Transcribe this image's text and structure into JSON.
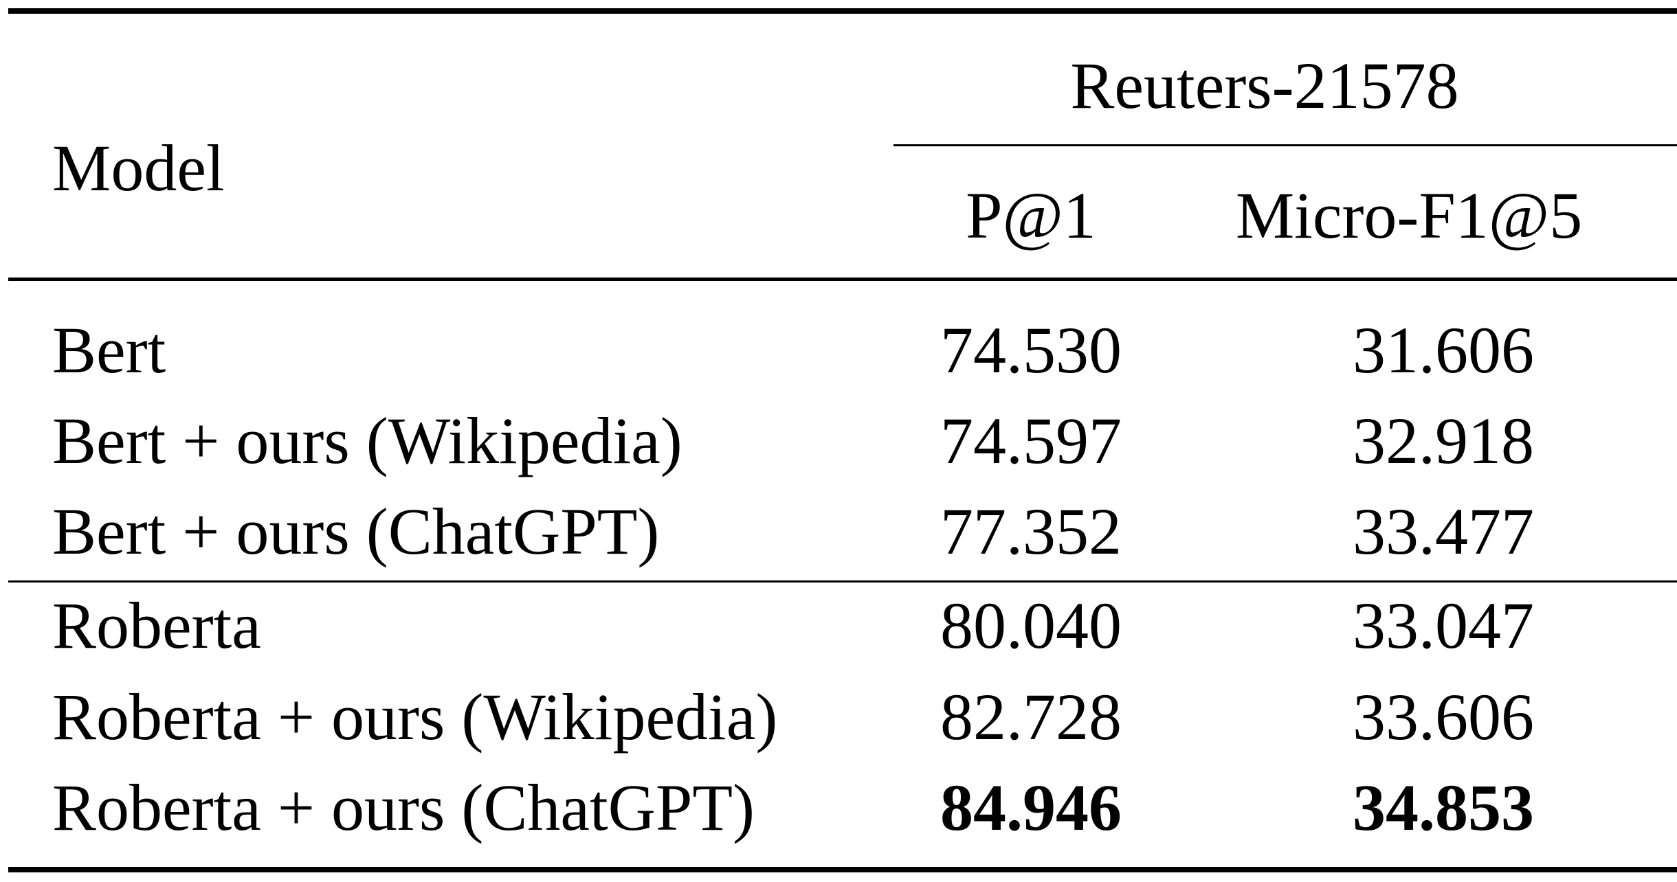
{
  "table": {
    "header": {
      "model": "Model",
      "dataset": "Reuters-21578",
      "metrics": [
        "P@1",
        "Micro-F1@5"
      ]
    },
    "groups": [
      {
        "rows": [
          {
            "model": "Bert",
            "p1": "74.530",
            "f1": "31.606",
            "bold": false
          },
          {
            "model": "Bert + ours (Wikipedia)",
            "p1": "74.597",
            "f1": "32.918",
            "bold": false
          },
          {
            "model": "Bert + ours (ChatGPT)",
            "p1": "77.352",
            "f1": "33.477",
            "bold": false
          }
        ]
      },
      {
        "rows": [
          {
            "model": "Roberta",
            "p1": "80.040",
            "f1": "33.047",
            "bold": false
          },
          {
            "model": "Roberta + ours (Wikipedia)",
            "p1": "82.728",
            "f1": "33.606",
            "bold": false
          },
          {
            "model": "Roberta + ours (ChatGPT)",
            "p1": "84.946",
            "f1": "34.853",
            "bold": true
          }
        ]
      }
    ]
  }
}
